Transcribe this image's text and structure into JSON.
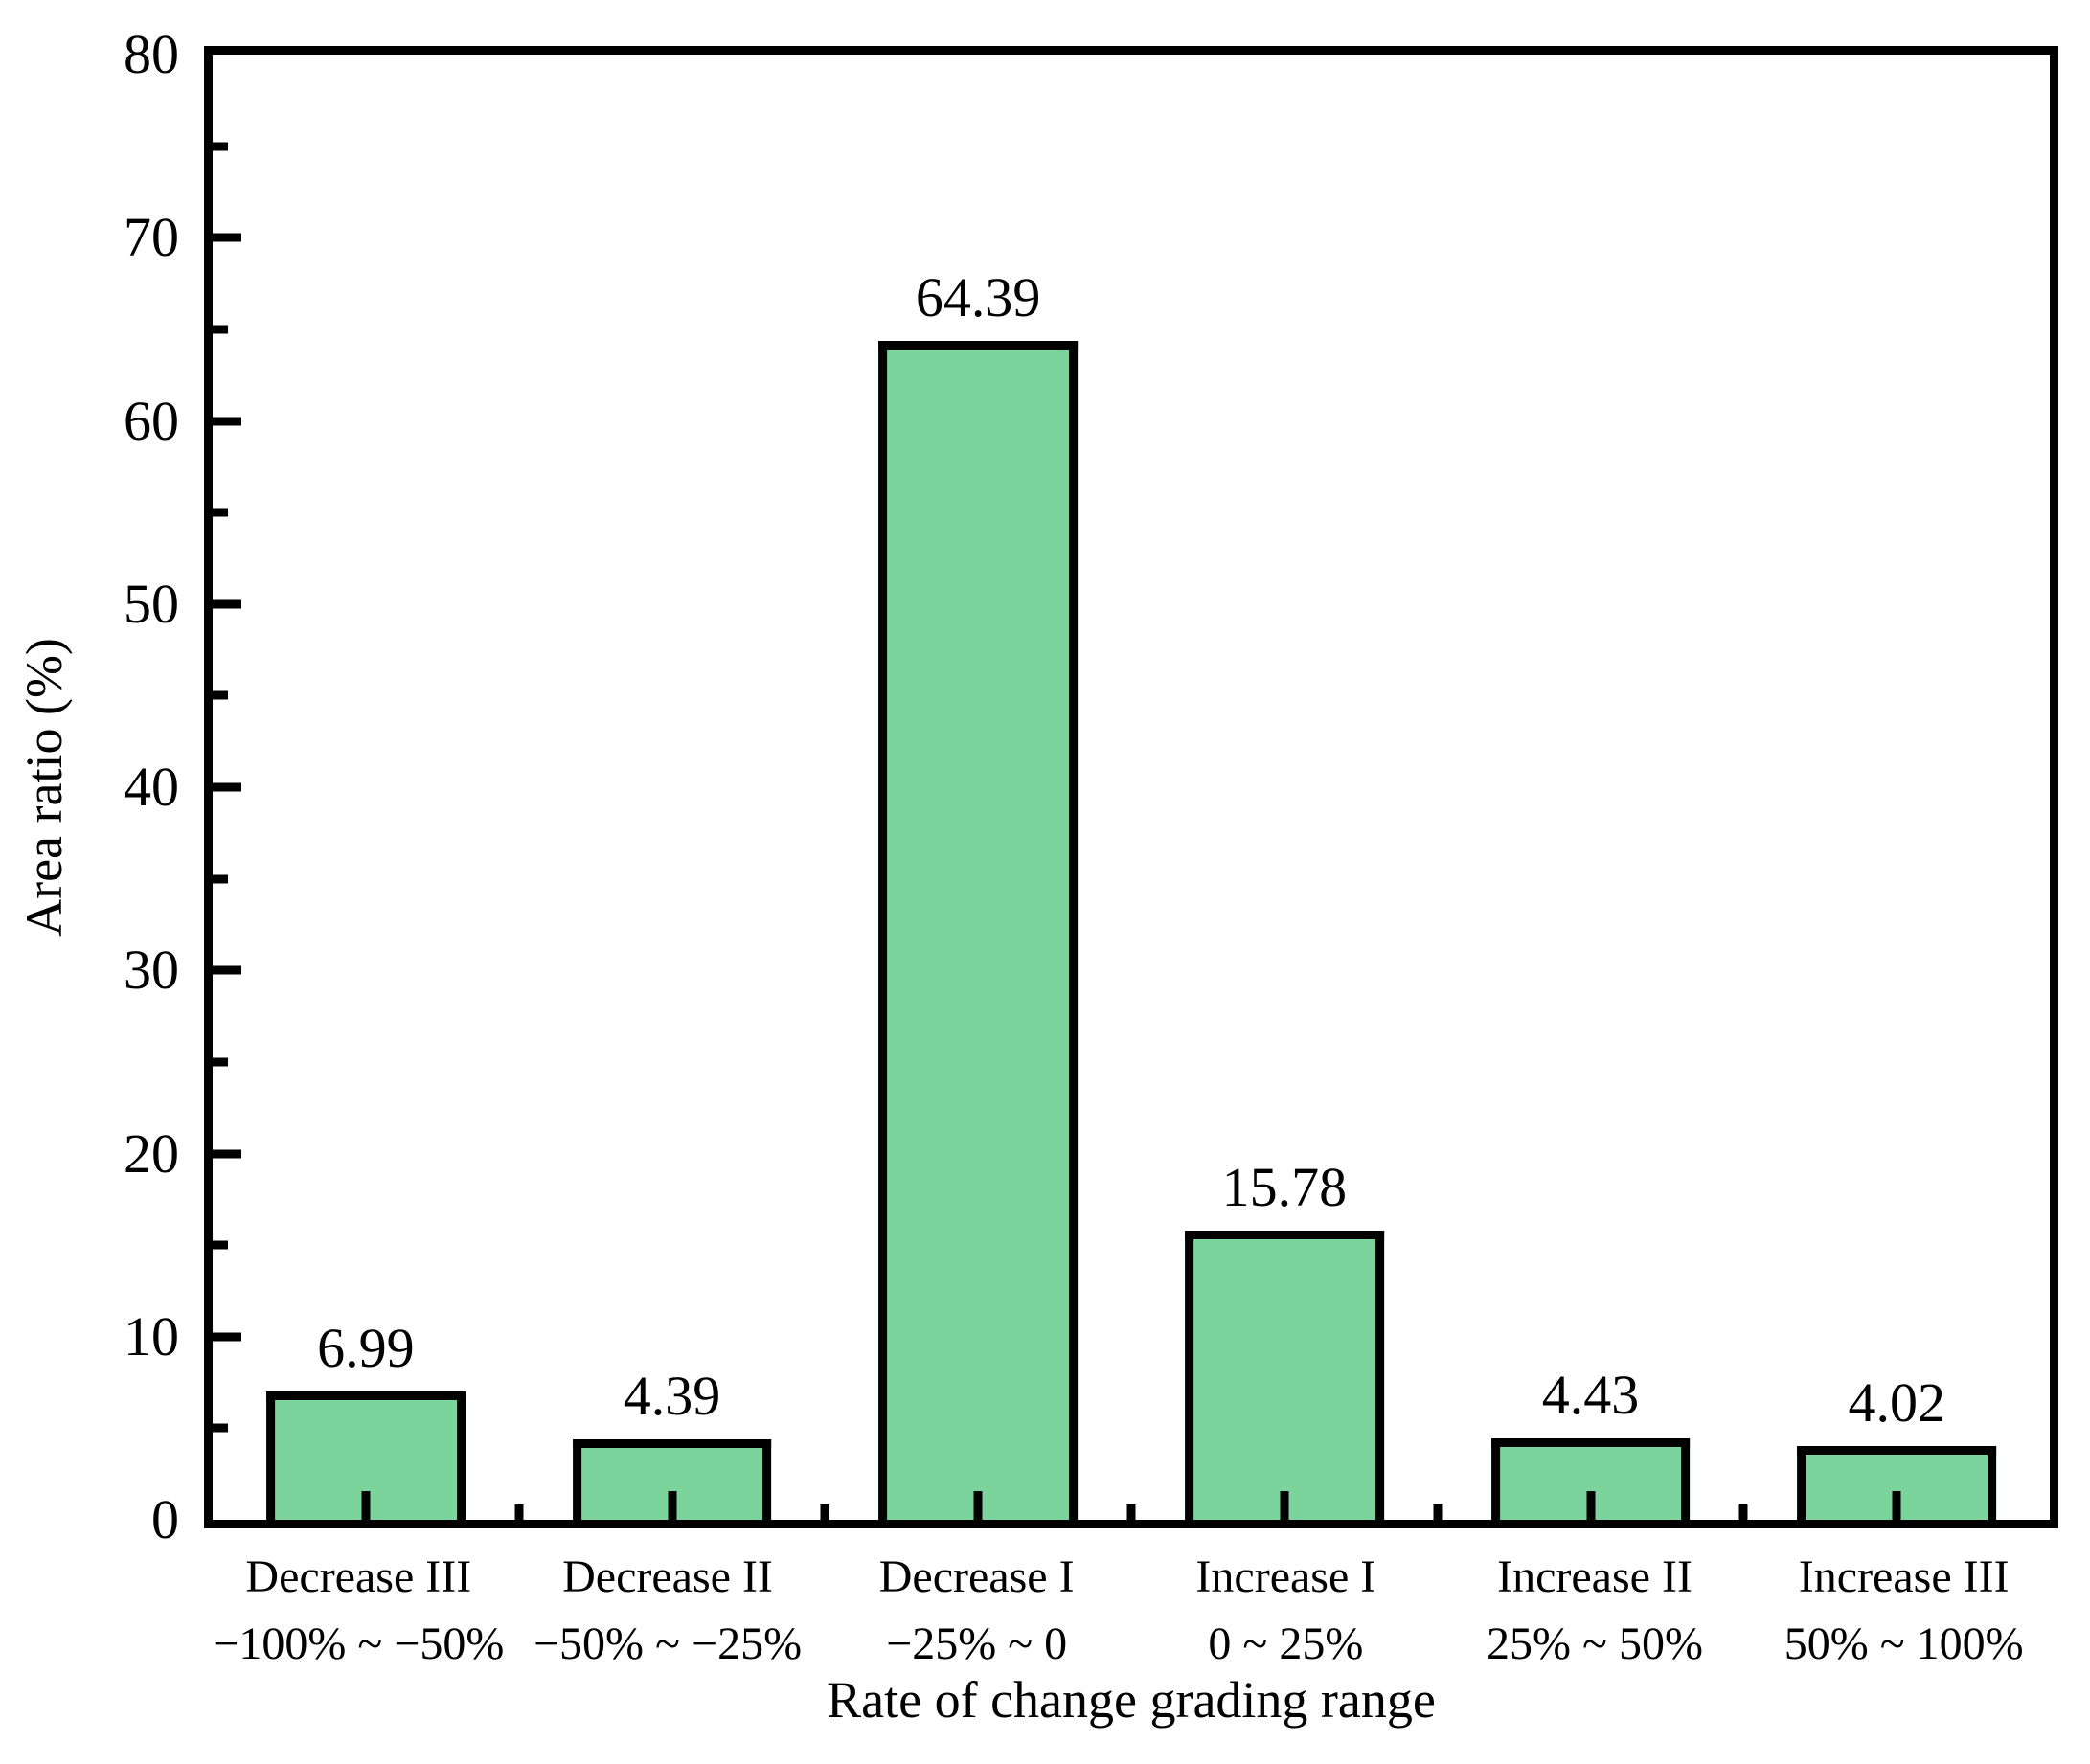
{
  "figure": {
    "background": "#ffffff",
    "text_color": "#000000"
  },
  "chart_data": {
    "type": "bar",
    "title": "",
    "xlabel": "Rate of change grading range",
    "ylabel": "Area ratio (%)",
    "ylim": [
      0,
      80
    ],
    "yticks": [
      0,
      10,
      20,
      30,
      40,
      50,
      60,
      70,
      80
    ],
    "ytick_step": 10,
    "ytick_minor_step": 5,
    "grid": "off",
    "legend": "none",
    "categories": [
      "Decrease III",
      "Decrease II",
      "Decrease I",
      "Increase I",
      "Increase II",
      "Increase III"
    ],
    "category_ranges": [
      "−100% ~ −50%",
      "−50% ~ −25%",
      "−25% ~ 0",
      "0 ~ 25%",
      "25% ~ 50%",
      "50% ~ 100%"
    ],
    "values": [
      6.99,
      4.39,
      64.39,
      15.78,
      4.43,
      4.02
    ],
    "value_labels": [
      "6.99",
      "4.39",
      "64.39",
      "15.78",
      "4.43",
      "4.02"
    ],
    "bar_color": "#7bd49b",
    "bar_border_color": "#000000",
    "axis_color": "#000000"
  }
}
